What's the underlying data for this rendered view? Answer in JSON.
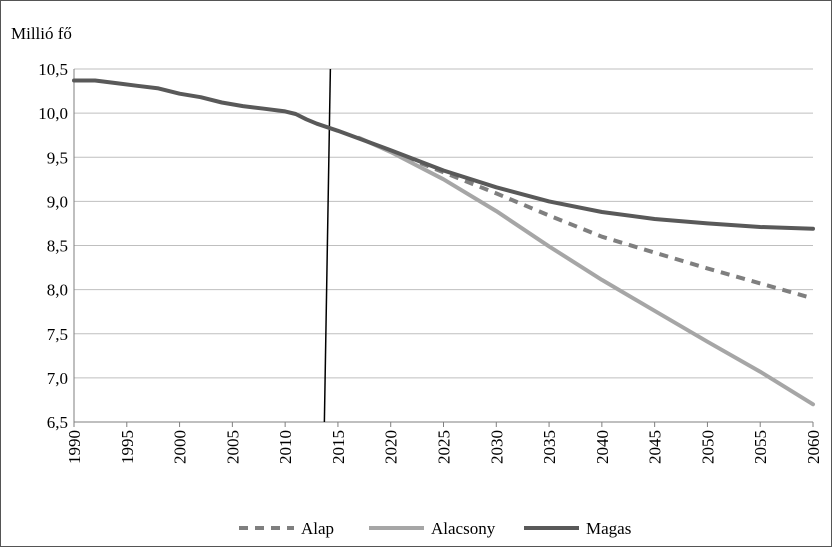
{
  "chart_data": {
    "type": "line",
    "title": "",
    "ylabel": "Millió fő",
    "xlabel": "",
    "ylim": [
      6.5,
      10.5
    ],
    "xlim": [
      1990,
      2060
    ],
    "yticks": [
      "6,5",
      "7,0",
      "7,5",
      "8,0",
      "8,5",
      "9,0",
      "9,5",
      "10,0",
      "10,5"
    ],
    "xticks": [
      "1990",
      "1995",
      "2000",
      "2005",
      "2010",
      "2015",
      "2020",
      "2025",
      "2030",
      "2035",
      "2040",
      "2045",
      "2050",
      "2055",
      "2060"
    ],
    "grid": "horizontal",
    "legend_position": "bottom",
    "vertical_marker_year": 2014,
    "series": [
      {
        "name": "Alap",
        "color": "#7f7f7f",
        "style": "dashed",
        "points": [
          [
            2020,
            9.57
          ],
          [
            2025,
            9.33
          ],
          [
            2030,
            9.09
          ],
          [
            2035,
            8.84
          ],
          [
            2040,
            8.6
          ],
          [
            2045,
            8.42
          ],
          [
            2050,
            8.24
          ],
          [
            2055,
            8.07
          ],
          [
            2060,
            7.9
          ]
        ]
      },
      {
        "name": "Alacsony",
        "color": "#a6a6a6",
        "style": "solid",
        "points": [
          [
            2017,
            9.72
          ],
          [
            2020,
            9.56
          ],
          [
            2025,
            9.25
          ],
          [
            2030,
            8.89
          ],
          [
            2035,
            8.49
          ],
          [
            2040,
            8.11
          ],
          [
            2045,
            7.76
          ],
          [
            2050,
            7.41
          ],
          [
            2055,
            7.07
          ],
          [
            2060,
            6.7
          ]
        ]
      },
      {
        "name": "Magas",
        "color": "#595959",
        "style": "solid",
        "points": [
          [
            1990,
            10.37
          ],
          [
            1992,
            10.37
          ],
          [
            1994,
            10.34
          ],
          [
            1996,
            10.31
          ],
          [
            1998,
            10.28
          ],
          [
            2000,
            10.22
          ],
          [
            2002,
            10.18
          ],
          [
            2004,
            10.12
          ],
          [
            2006,
            10.08
          ],
          [
            2008,
            10.05
          ],
          [
            2010,
            10.02
          ],
          [
            2011,
            9.99
          ],
          [
            2012,
            9.93
          ],
          [
            2013,
            9.88
          ],
          [
            2015,
            9.8
          ],
          [
            2020,
            9.58
          ],
          [
            2025,
            9.35
          ],
          [
            2030,
            9.16
          ],
          [
            2035,
            9.0
          ],
          [
            2040,
            8.88
          ],
          [
            2045,
            8.8
          ],
          [
            2050,
            8.75
          ],
          [
            2055,
            8.71
          ],
          [
            2060,
            8.69
          ]
        ]
      }
    ]
  }
}
